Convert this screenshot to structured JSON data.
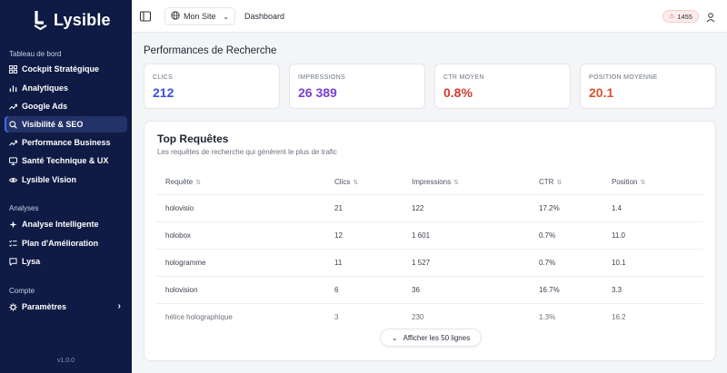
{
  "brand": {
    "name": "Lysible"
  },
  "sidebar": {
    "sections": [
      {
        "label": "Tableau de bord"
      },
      {
        "label": "Analyses"
      },
      {
        "label": "Compte"
      }
    ],
    "items": [
      {
        "label": "Cockpit Stratégique",
        "icon": "grid-icon"
      },
      {
        "label": "Analytiques",
        "icon": "bar-chart-icon"
      },
      {
        "label": "Google Ads",
        "icon": "trend-icon"
      },
      {
        "label": "Visibilité & SEO",
        "icon": "search-icon",
        "active": true
      },
      {
        "label": "Performance Business",
        "icon": "trend-icon"
      },
      {
        "label": "Santé Technique & UX",
        "icon": "monitor-icon"
      },
      {
        "label": "Lysible Vision",
        "icon": "eye-icon"
      },
      {
        "label": "Analyse Intelligente",
        "icon": "sparkle-icon"
      },
      {
        "label": "Plan d'Amélioration",
        "icon": "checklist-icon"
      },
      {
        "label": "Lysa",
        "icon": "chat-icon"
      },
      {
        "label": "Paramètres",
        "icon": "gear-icon"
      }
    ],
    "version": "v1.0.0"
  },
  "header": {
    "site_select": "Mon Site",
    "breadcrumb": "Dashboard",
    "credits": "1455"
  },
  "main": {
    "title": "Performances de Recherche",
    "stats": [
      {
        "label": "CLICS",
        "value": "212",
        "color": "#3b4fd8"
      },
      {
        "label": "IMPRESSIONS",
        "value": "26 389",
        "color": "#7a3fd1"
      },
      {
        "label": "CTR MOYEN",
        "value": "0.8%",
        "color": "#d43a2f"
      },
      {
        "label": "POSITION MOYENNE",
        "value": "20.1",
        "color": "#d4542f"
      }
    ],
    "queries": {
      "title": "Top Requêtes",
      "subtitle": "Les requêtes de recherche qui génèrent le plus de trafic",
      "columns": [
        "Requête",
        "Clics",
        "Impressions",
        "CTR",
        "Position"
      ],
      "rows": [
        [
          "holovisio",
          "21",
          "122",
          "17.2%",
          "1.4"
        ],
        [
          "holobox",
          "12",
          "1 601",
          "0.7%",
          "11.0"
        ],
        [
          "hologramme",
          "11",
          "1 527",
          "0.7%",
          "10.1"
        ],
        [
          "holovision",
          "6",
          "36",
          "16.7%",
          "3.3"
        ],
        [
          "hélice holographique",
          "3",
          "230",
          "1.3%",
          "16.2"
        ]
      ],
      "show_more": "Afficher les 50 lignes"
    }
  }
}
